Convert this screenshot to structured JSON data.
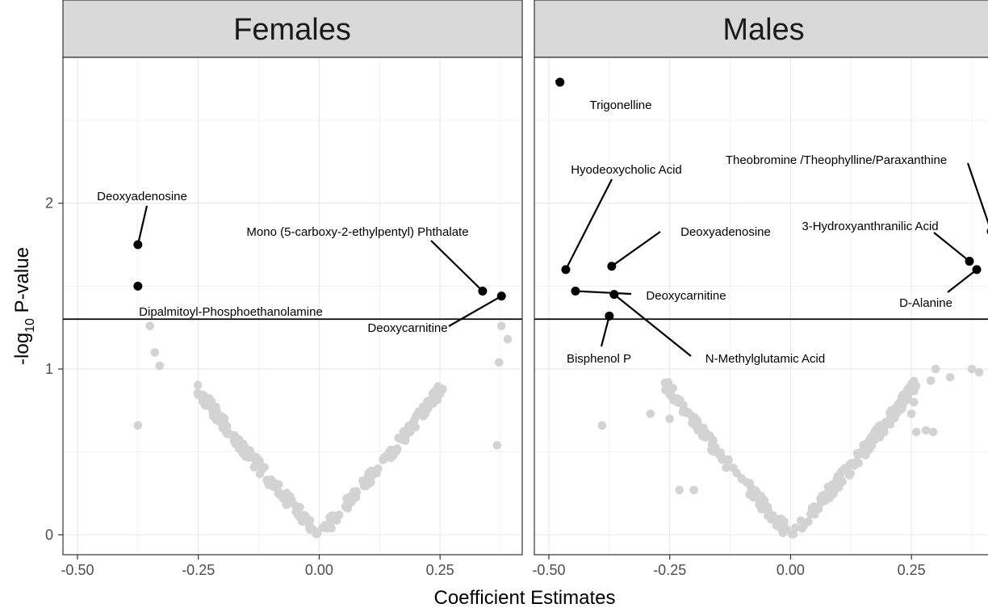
{
  "chart_data": {
    "type": "scatter",
    "xlabel": "Coefficient Estimates",
    "ylabel": {
      "prefix": "-log",
      "sub": "10",
      "suffix": " P-value"
    },
    "xlim": [
      -0.53,
      0.42
    ],
    "ylim": [
      -0.12,
      2.88
    ],
    "x_ticks": [
      -0.5,
      -0.25,
      0.0,
      0.25
    ],
    "x_tick_labels": [
      "-0.50",
      "-0.25",
      "0.00",
      "0.25"
    ],
    "y_ticks": [
      0,
      1,
      2
    ],
    "y_tick_labels": [
      "0",
      "1",
      "2"
    ],
    "threshold": 1.301,
    "grid": true,
    "colors": {
      "significant": "#000000",
      "nonsignificant": "#d3d3d3",
      "strip": "#d9d9d9",
      "line": "#000000"
    },
    "panels": [
      {
        "title": "Females",
        "significant": [
          {
            "label": "Deoxyadenosine",
            "x": -0.375,
            "y": 1.75
          },
          {
            "label": "Dipalmitoyl-Phosphoethanolamine",
            "x": -0.375,
            "y": 1.5
          },
          {
            "label": "Mono (5-carboxy-2-ethylpentyl) Phthalate",
            "x": 0.338,
            "y": 1.47
          },
          {
            "label": "Deoxycarnitine",
            "x": 0.377,
            "y": 1.44
          }
        ],
        "outliers": [
          [
            -0.375,
            0.66
          ],
          [
            -0.35,
            1.26
          ],
          [
            -0.34,
            1.1
          ],
          [
            -0.33,
            1.02
          ],
          [
            0.368,
            0.54
          ],
          [
            0.372,
            1.04
          ],
          [
            0.377,
            1.26
          ],
          [
            0.39,
            1.18
          ]
        ]
      },
      {
        "title": "Males",
        "significant": [
          {
            "label": "Trigonelline",
            "x": -0.477,
            "y": 2.73
          },
          {
            "label": "Hyodeoxycholic Acid",
            "x": -0.465,
            "y": 1.6
          },
          {
            "label": "Deoxyadenosine",
            "x": -0.37,
            "y": 1.62
          },
          {
            "label": "Deoxycarnitine",
            "x": -0.445,
            "y": 1.47
          },
          {
            "label": "N-Methylglutamic Acid",
            "x": -0.365,
            "y": 1.45
          },
          {
            "label": "Bisphenol P",
            "x": -0.375,
            "y": 1.32
          },
          {
            "label": "Theobromine /Theophylline/Paraxanthine",
            "x": 0.415,
            "y": 1.83
          },
          {
            "label": "3-Hydroxyanthranilic Acid",
            "x": 0.37,
            "y": 1.65
          },
          {
            "label": "D-Alanine",
            "x": 0.385,
            "y": 1.6
          }
        ],
        "outliers": [
          [
            -0.39,
            0.66
          ],
          [
            -0.29,
            0.73
          ],
          [
            -0.245,
            0.83
          ],
          [
            -0.25,
            0.7
          ],
          [
            -0.23,
            0.27
          ],
          [
            -0.2,
            0.27
          ],
          [
            0.3,
            1.0
          ],
          [
            0.29,
            0.93
          ],
          [
            0.33,
            0.95
          ],
          [
            0.375,
            1.0
          ],
          [
            0.39,
            0.98
          ],
          [
            0.295,
            0.62
          ],
          [
            0.28,
            0.63
          ],
          [
            0.26,
            0.62
          ],
          [
            0.25,
            0.73
          ],
          [
            0.255,
            0.8
          ]
        ]
      }
    ]
  }
}
